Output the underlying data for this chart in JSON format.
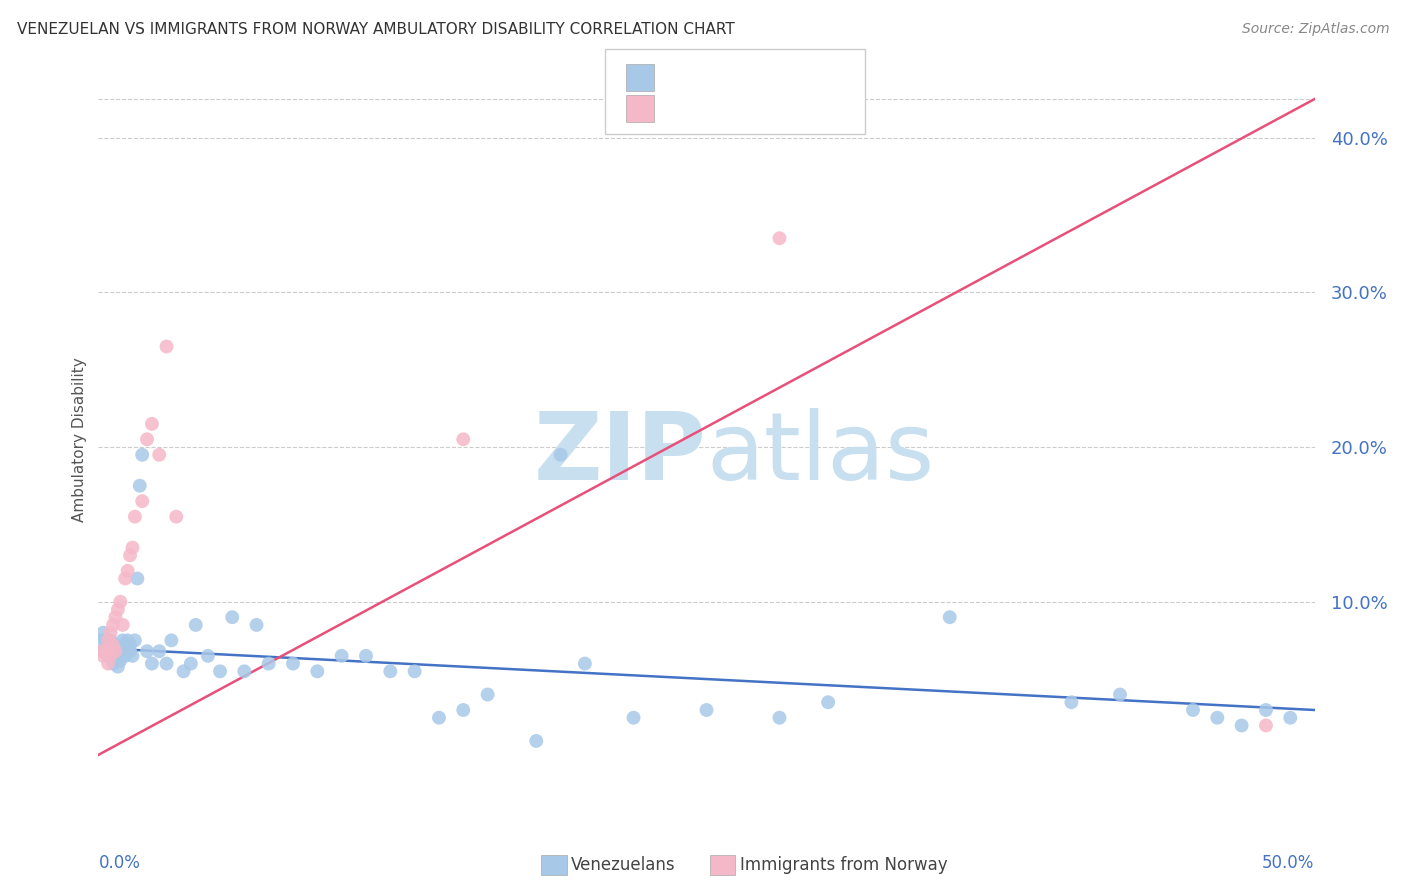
{
  "title": "VENEZUELAN VS IMMIGRANTS FROM NORWAY AMBULATORY DISABILITY CORRELATION CHART",
  "source": "Source: ZipAtlas.com",
  "ylabel": "Ambulatory Disability",
  "xlim": [
    0,
    0.5
  ],
  "ylim": [
    -0.03,
    0.44
  ],
  "ytick_values": [
    0.1,
    0.2,
    0.3,
    0.4
  ],
  "venezuelan_color": "#a8c8e8",
  "norway_color": "#f5b8c8",
  "trendline_blue": "#4472c4",
  "trendline_pink": "#e8507a",
  "background": "#ffffff",
  "trendline_blue_start_y": 0.07,
  "trendline_blue_end_y": 0.03,
  "trendline_pink_start_y": 0.001,
  "trendline_pink_end_y": 0.425,
  "venezuelan_x": [
    0.001,
    0.002,
    0.002,
    0.003,
    0.003,
    0.004,
    0.004,
    0.005,
    0.005,
    0.006,
    0.006,
    0.007,
    0.007,
    0.008,
    0.008,
    0.009,
    0.009,
    0.01,
    0.01,
    0.011,
    0.011,
    0.012,
    0.012,
    0.013,
    0.013,
    0.014,
    0.015,
    0.016,
    0.017,
    0.018,
    0.02,
    0.022,
    0.025,
    0.028,
    0.03,
    0.035,
    0.038,
    0.04,
    0.045,
    0.05,
    0.055,
    0.06,
    0.065,
    0.07,
    0.08,
    0.09,
    0.1,
    0.11,
    0.12,
    0.13,
    0.14,
    0.15,
    0.16,
    0.18,
    0.19,
    0.2,
    0.22,
    0.25,
    0.28,
    0.3,
    0.35,
    0.4,
    0.42,
    0.45,
    0.46,
    0.47,
    0.48,
    0.49
  ],
  "venezuelan_y": [
    0.075,
    0.068,
    0.08,
    0.07,
    0.075,
    0.065,
    0.072,
    0.068,
    0.075,
    0.06,
    0.07,
    0.065,
    0.072,
    0.058,
    0.068,
    0.062,
    0.07,
    0.068,
    0.075,
    0.065,
    0.072,
    0.068,
    0.075,
    0.068,
    0.072,
    0.065,
    0.075,
    0.115,
    0.175,
    0.195,
    0.068,
    0.06,
    0.068,
    0.06,
    0.075,
    0.055,
    0.06,
    0.085,
    0.065,
    0.055,
    0.09,
    0.055,
    0.085,
    0.06,
    0.06,
    0.055,
    0.065,
    0.065,
    0.055,
    0.055,
    0.025,
    0.03,
    0.04,
    0.01,
    0.195,
    0.06,
    0.025,
    0.03,
    0.025,
    0.035,
    0.09,
    0.035,
    0.04,
    0.03,
    0.025,
    0.02,
    0.03,
    0.025
  ],
  "norway_x": [
    0.001,
    0.002,
    0.003,
    0.004,
    0.004,
    0.005,
    0.005,
    0.006,
    0.006,
    0.007,
    0.007,
    0.008,
    0.009,
    0.01,
    0.011,
    0.012,
    0.013,
    0.014,
    0.015,
    0.018,
    0.02,
    0.022,
    0.025,
    0.028,
    0.032,
    0.15,
    0.28,
    0.48
  ],
  "norway_y": [
    0.068,
    0.065,
    0.068,
    0.06,
    0.075,
    0.065,
    0.08,
    0.072,
    0.085,
    0.068,
    0.09,
    0.095,
    0.1,
    0.085,
    0.115,
    0.12,
    0.13,
    0.135,
    0.155,
    0.165,
    0.205,
    0.215,
    0.195,
    0.265,
    0.155,
    0.205,
    0.335,
    0.02
  ]
}
